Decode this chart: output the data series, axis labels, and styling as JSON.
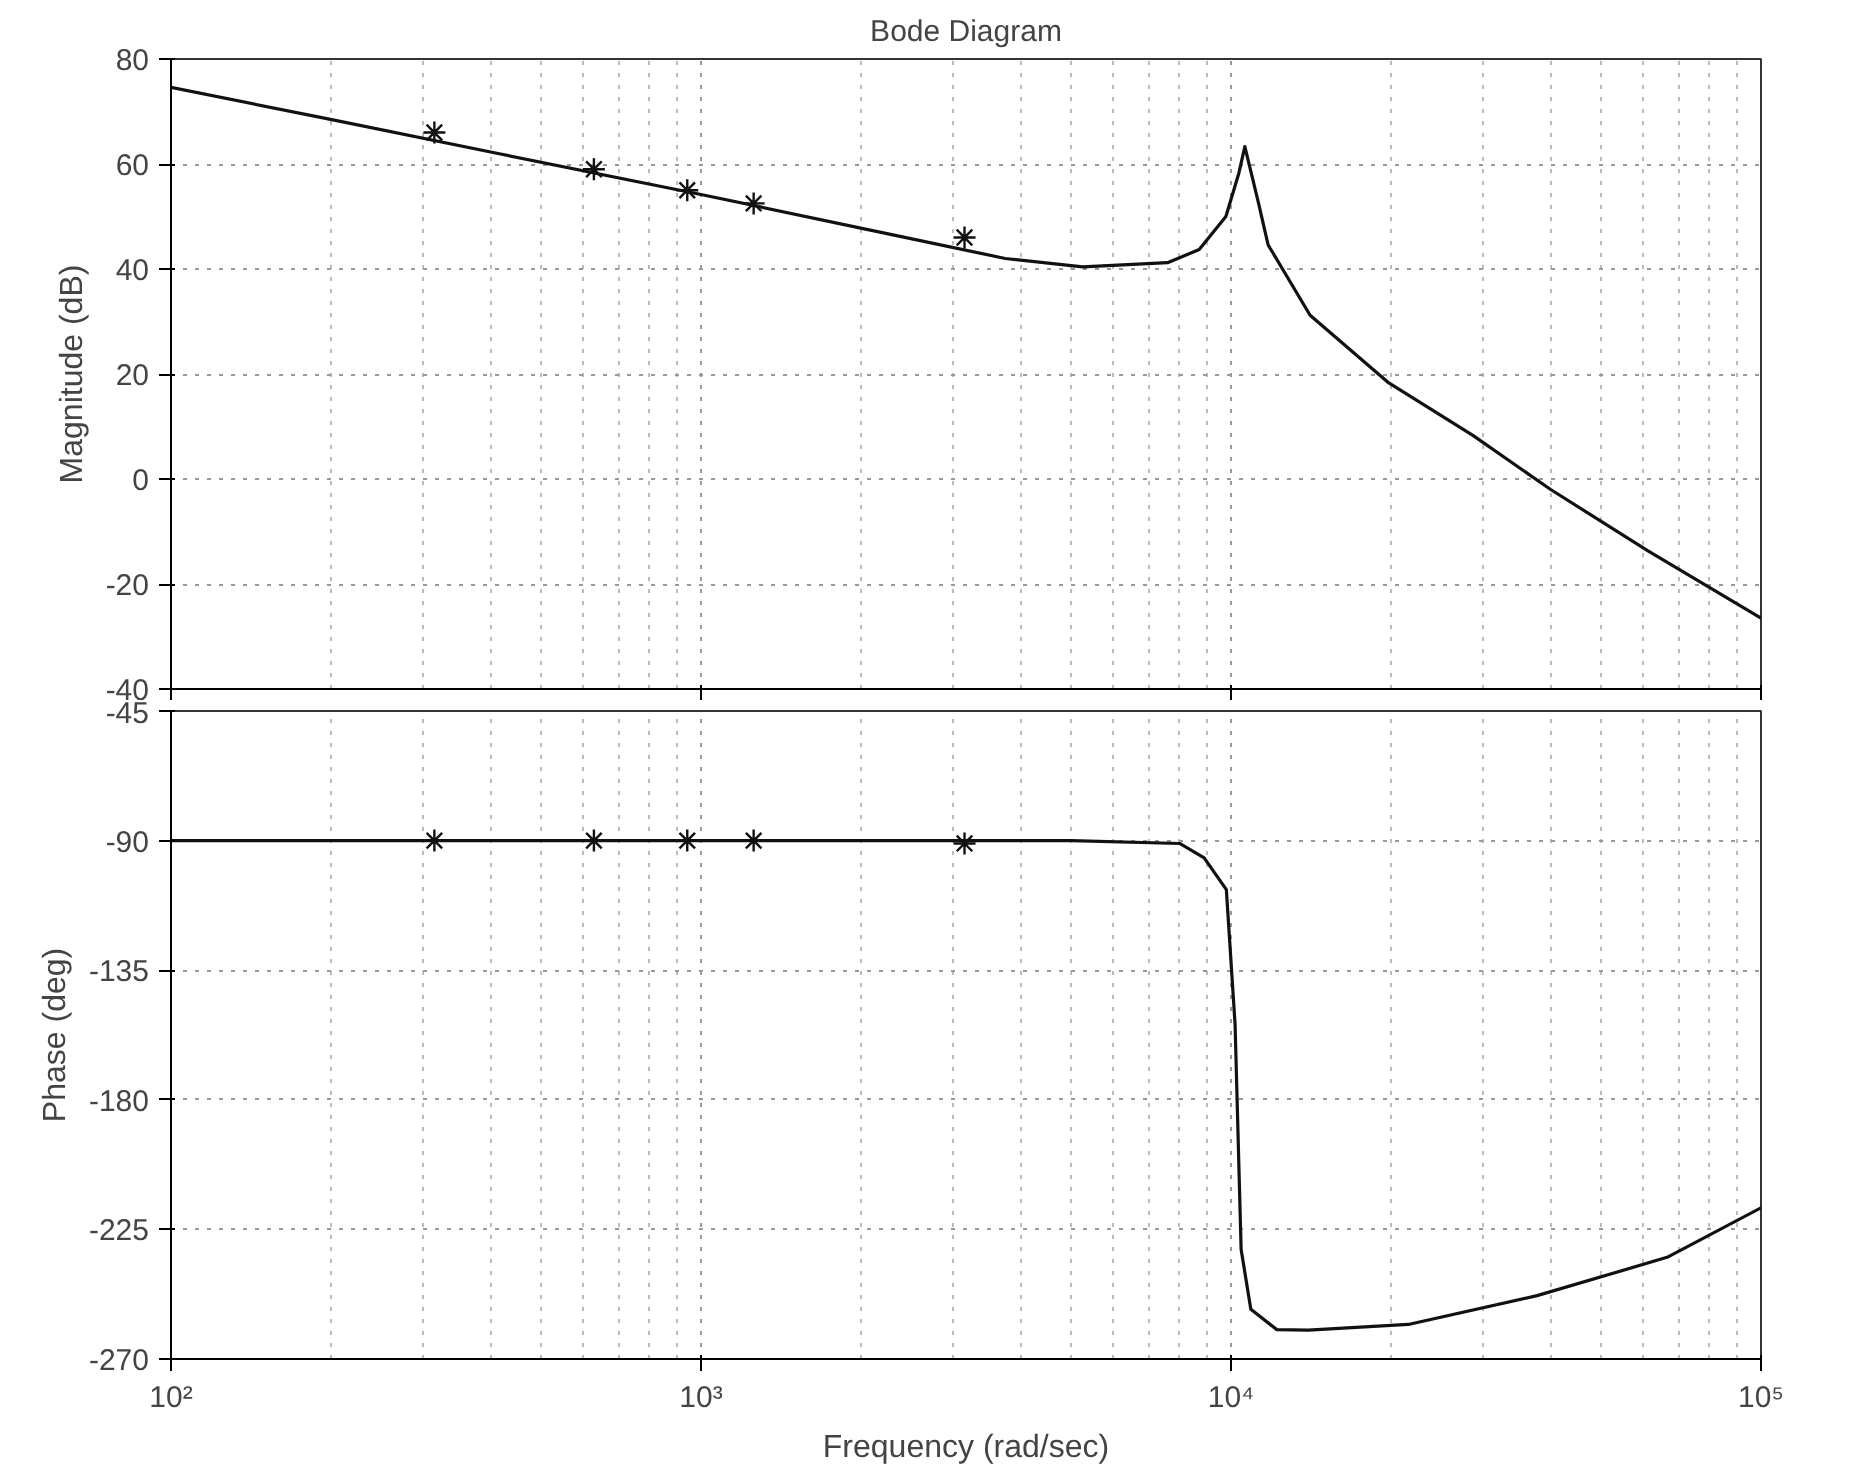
{
  "chart_data": [
    {
      "type": "line",
      "title": "Bode Diagram",
      "ylabel": "Magnitude (dB)",
      "log": "x",
      "grid": true,
      "tick_labels": "y",
      "xlim": [
        100,
        100000
      ],
      "xticks": [
        100,
        1000,
        10000,
        100000
      ],
      "ylim": [
        -40,
        80
      ],
      "yticks": [
        -40,
        -20,
        0,
        20,
        40,
        60,
        80
      ],
      "series": [
        {
          "color": "#111111",
          "x": [
            100,
            200,
            414,
            1000,
            2255,
            3750,
            5250,
            7590,
            8710,
            9780,
            10350,
            10620,
            11250,
            11750,
            14100,
            19850,
            28600,
            40100,
            61200,
            100000
          ],
          "values": [
            74.6,
            68.5,
            62,
            54.2,
            46.7,
            42,
            40.4,
            41.2,
            43.7,
            50,
            58.3,
            63.3,
            52.9,
            44.6,
            31.2,
            18.3,
            8.3,
            -2,
            -13.7,
            -26.5
          ]
        },
        {
          "type": "scatter",
          "marker": "cross",
          "color": "#111111",
          "x": [
            314,
            628,
            942,
            1257,
            3142
          ],
          "values": [
            66,
            59,
            55,
            52.5,
            46
          ]
        }
      ]
    },
    {
      "type": "line",
      "xlabel": "Frequency (rad/sec)",
      "ylabel": "Phase (deg)",
      "log": "x",
      "grid": true,
      "xlim": [
        100,
        100000
      ],
      "xticks": [
        {
          "value": 100,
          "label": "10²"
        },
        {
          "value": 1000,
          "label": "10³"
        },
        {
          "value": 10000,
          "label": "10⁴"
        },
        {
          "value": 100000,
          "label": "10⁵"
        }
      ],
      "ylim": [
        -270,
        -45
      ],
      "yticks": [
        -270,
        -225,
        -180,
        -135,
        -90,
        -45
      ],
      "series": [
        {
          "color": "#111111",
          "x": [
            100,
            1000,
            5000,
            8000,
            8900,
            9800,
            10180,
            10450,
            10900,
            12200,
            14000,
            21600,
            37800,
            66500,
            100000
          ],
          "values": [
            -90,
            -90,
            -90,
            -91,
            -96,
            -107,
            -154,
            -232,
            -252.7,
            -259.8,
            -260,
            -258,
            -248,
            -234.7,
            -217.5
          ]
        },
        {
          "type": "scatter",
          "marker": "cross",
          "color": "#111111",
          "x": [
            314,
            628,
            942,
            1257,
            3142
          ],
          "values": [
            -90,
            -90,
            -90,
            -90,
            -91
          ]
        }
      ]
    }
  ]
}
